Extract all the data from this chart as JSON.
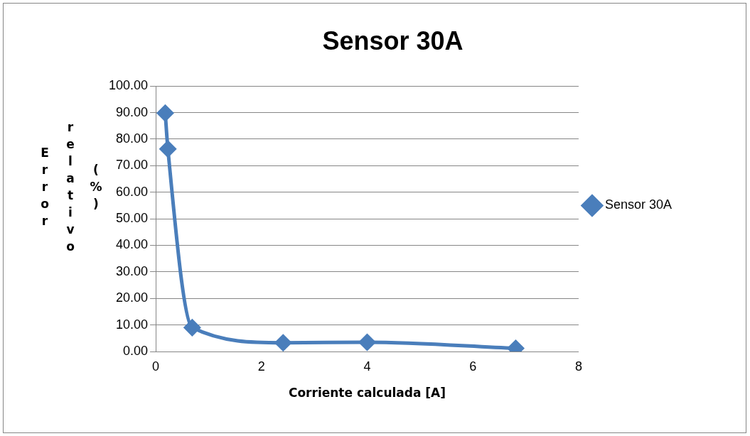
{
  "chart_data": {
    "type": "line",
    "title": "Sensor 30A",
    "xlabel": "Corriente calculada [A]",
    "ylabel": "Error relativo (%)",
    "x": [
      0.18,
      0.23,
      0.69,
      2.41,
      4.0,
      6.81
    ],
    "series": [
      {
        "name": "Sensor 30A",
        "color": "#4a7ebb",
        "values": [
          89.8,
          76.3,
          9.0,
          3.3,
          3.5,
          1.2
        ]
      }
    ],
    "xlim": [
      0,
      8
    ],
    "xticks": [
      0,
      2,
      4,
      6,
      8
    ],
    "ylim": [
      0,
      100
    ],
    "yticks": [
      {
        "value": 0,
        "label": "0.00"
      },
      {
        "value": 10,
        "label": "10.00"
      },
      {
        "value": 20,
        "label": "20.00"
      },
      {
        "value": 30,
        "label": "30.00"
      },
      {
        "value": 40,
        "label": "40.00"
      },
      {
        "value": 50,
        "label": "50.00"
      },
      {
        "value": 60,
        "label": "60.00"
      },
      {
        "value": 70,
        "label": "70.00"
      },
      {
        "value": 80,
        "label": "80.00"
      },
      {
        "value": 90,
        "label": "90.00"
      },
      {
        "value": 100,
        "label": "100.00"
      }
    ],
    "grid": "y",
    "legend": "right",
    "marker": "diamond",
    "line_style": "solid"
  }
}
